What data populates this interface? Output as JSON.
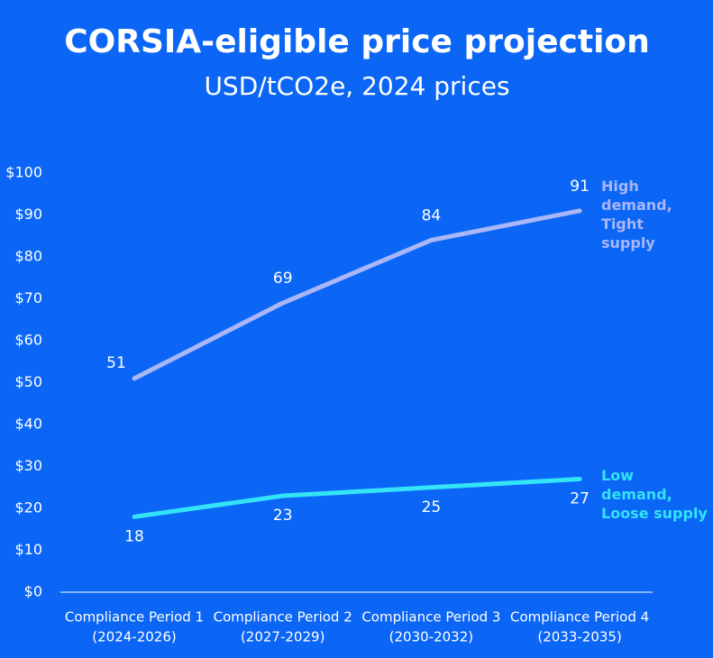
{
  "chart_data": {
    "type": "line",
    "title": "CORSIA-eligible price projection",
    "subtitle": "USD/tCO2e, 2024 prices",
    "categories": [
      [
        "Compliance Period 1",
        "(2024-2026)"
      ],
      [
        "Compliance Period 2",
        "(2027-2029)"
      ],
      [
        "Compliance Period 3",
        "(2030-2032)"
      ],
      [
        "Compliance Period 4",
        "(2033-2035)"
      ]
    ],
    "series": [
      {
        "name": "High demand, Tight supply",
        "color": "#a9b6f7",
        "values": [
          51,
          69,
          84,
          91
        ]
      },
      {
        "name": "Low demand, Loose supply",
        "color": "#33e3f7",
        "values": [
          18,
          23,
          25,
          27
        ]
      }
    ],
    "ylim": [
      0,
      100
    ],
    "yticks": [
      {
        "value": 0,
        "label": "$0"
      },
      {
        "value": 10,
        "label": "$10"
      },
      {
        "value": 20,
        "label": "$20"
      },
      {
        "value": 30,
        "label": "$30"
      },
      {
        "value": 40,
        "label": "$40"
      },
      {
        "value": 50,
        "label": "$50"
      },
      {
        "value": 60,
        "label": "$60"
      },
      {
        "value": 70,
        "label": "$70"
      },
      {
        "value": 80,
        "label": "$80"
      },
      {
        "value": 90,
        "label": "$90"
      },
      {
        "value": 100,
        "label": "$100"
      }
    ]
  }
}
